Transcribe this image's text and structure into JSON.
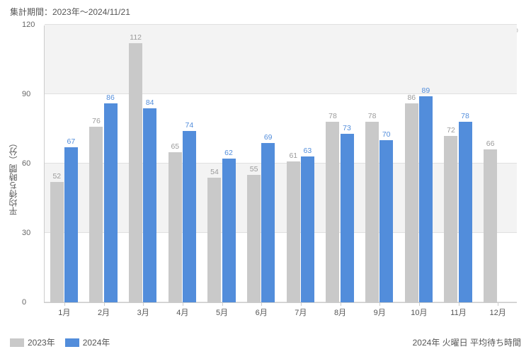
{
  "header": {
    "aggregation_period": "集計期間：2023年～2024/11/21"
  },
  "watermark": {
    "text": "ユニバリアル  https://usjreal.asumirai.info"
  },
  "chart": {
    "type": "bar",
    "y_axis": {
      "label": "平均待ち時間（分）",
      "min": 0,
      "max": 120,
      "tick_step": 30,
      "label_fontsize": 12,
      "tick_fontsize": 11,
      "tick_color": "#666"
    },
    "x_axis": {
      "categories": [
        "1月",
        "2月",
        "3月",
        "4月",
        "5月",
        "6月",
        "7月",
        "8月",
        "9月",
        "10月",
        "11月",
        "12月"
      ],
      "tick_fontsize": 11
    },
    "series": [
      {
        "name": "2023年",
        "color": "#c9c9c9",
        "value_label_color": "#9a9a9a",
        "values": [
          52,
          76,
          112,
          65,
          54,
          55,
          61,
          78,
          78,
          86,
          72,
          66
        ]
      },
      {
        "name": "2024年",
        "color": "#528ddb",
        "value_label_color": "#528ddb",
        "values": [
          67,
          86,
          84,
          74,
          62,
          69,
          63,
          73,
          70,
          89,
          78,
          null
        ]
      }
    ],
    "background_bands": {
      "color": "#f3f3f3"
    },
    "gridline_color": "#e0e0e0",
    "border_color": "#cccccc",
    "bar_width_ratio": 0.36,
    "plot_background": "#ffffff"
  },
  "legend": {
    "items": [
      {
        "label": "2023年",
        "color": "#c9c9c9"
      },
      {
        "label": "2024年",
        "color": "#528ddb"
      }
    ]
  },
  "caption": {
    "text": "2024年 火曜日 平均待ち時間"
  }
}
